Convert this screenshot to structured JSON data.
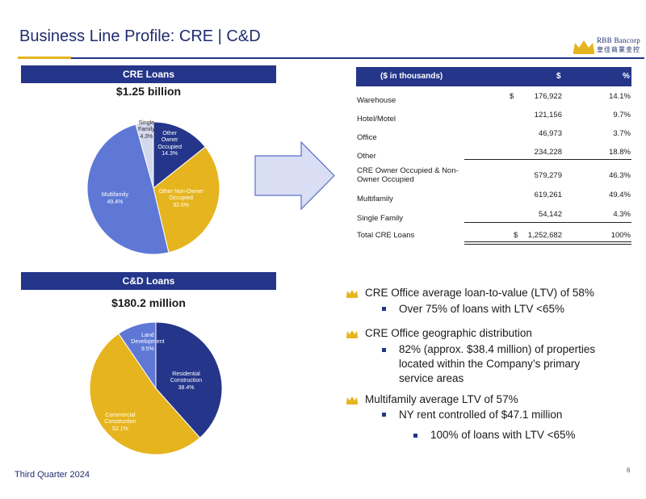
{
  "title": "Business Line Profile:  CRE | C&D",
  "logo": {
    "line1": "RBB Bancorp",
    "line2": "皇佳商業金控"
  },
  "cre_section": {
    "header": "CRE Loans",
    "amount": "$1.25 billion",
    "pie": [
      {
        "label": "Other Owner Occupied",
        "lines": [
          "Other",
          "Owner",
          "Occupied",
          "14.3%"
        ],
        "value": 14.3,
        "color": "#24358a"
      },
      {
        "label": "Other Non-Owner Occupied",
        "lines": [
          "Other Non-Owner",
          "Occupied",
          "32.0%"
        ],
        "value": 32.0,
        "color": "#e6b41e"
      },
      {
        "label": "Multifamily",
        "lines": [
          "Multifamily",
          "49.4%"
        ],
        "value": 49.4,
        "color": "#5f78d6"
      },
      {
        "label": "Single Family",
        "lines": [
          "Single",
          "Family",
          "4.3%"
        ],
        "value": 4.3,
        "color": "#d4d8ec"
      }
    ]
  },
  "table": {
    "headers": [
      "($ in thousands)",
      "$",
      "%"
    ],
    "rows": [
      {
        "label": "Warehouse",
        "currency": "$",
        "usd": "176,922",
        "pct": "14.1%"
      },
      {
        "label": "Hotel/Motel",
        "currency": "",
        "usd": "121,156",
        "pct": "9.7%"
      },
      {
        "label": "Office",
        "currency": "",
        "usd": "46,973",
        "pct": "3.7%"
      },
      {
        "label": "Other",
        "currency": "",
        "usd": "234,228",
        "pct": "18.8%"
      },
      {
        "label": "CRE Owner Occupied & Non-Owner Occupied",
        "currency": "",
        "usd": "579,279",
        "pct": "46.3%"
      },
      {
        "label": "Multifamily",
        "currency": "",
        "usd": "619,261",
        "pct": "49.4%"
      },
      {
        "label": "Single Family",
        "currency": "",
        "usd": "54,142",
        "pct": "4.3%"
      },
      {
        "label": "Total CRE Loans",
        "currency": "$",
        "usd": "1,252,682",
        "pct": "100%"
      }
    ]
  },
  "cd_section": {
    "header": "C&D Loans",
    "amount": "$180.2 million",
    "pie": [
      {
        "label": "Residential Construction",
        "lines": [
          "Residential",
          "Construction",
          "38.4%"
        ],
        "value": 38.4,
        "color": "#24358a"
      },
      {
        "label": "Commercial Construction",
        "lines": [
          "Commercial",
          "Construction",
          "52.1%"
        ],
        "value": 52.1,
        "color": "#e6b41e"
      },
      {
        "label": "Land Development",
        "lines": [
          "Land",
          "Development",
          "9.5%"
        ],
        "value": 9.5,
        "color": "#5f78d6"
      }
    ]
  },
  "bullets": [
    {
      "text": "CRE Office average loan-to-value (LTV) of 58%",
      "subs": [
        {
          "lines": [
            "Over 75% of loans with LTV <65%"
          ]
        }
      ]
    },
    {
      "text": "CRE Office geographic distribution",
      "subs": [
        {
          "lines": [
            "82% (approx. $38.4 million) of properties",
            "located within the Company’s primary",
            "service areas"
          ]
        }
      ]
    },
    {
      "text": "Multifamily average LTV of 57%",
      "subs": [
        {
          "lines": [
            "NY rent controlled of $47.1 million"
          ]
        },
        {
          "lines": [
            "100% of loans with LTV <65%"
          ]
        }
      ]
    }
  ],
  "footer": "Third Quarter 2024",
  "page_number": "6"
}
